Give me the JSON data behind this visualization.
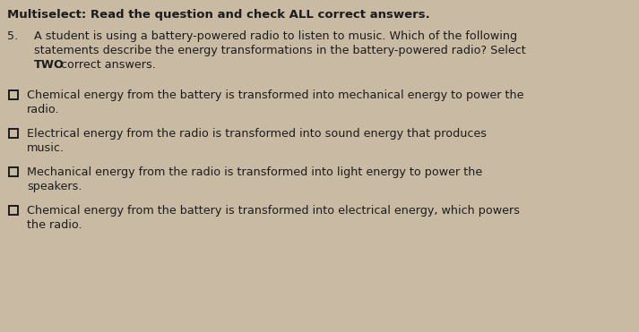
{
  "bg_color": "#c9bba3",
  "title": "Multiselect: Read the question and check ALL correct answers.",
  "q_num": "5.",
  "q_line1": "A student is using a battery-powered radio to listen to music. Which of the following",
  "q_line2": "statements describe the energy transformations in the battery-powered radio? Select",
  "q_bold": "TWO",
  "q_end": " correct answers.",
  "choices": [
    [
      "Chemical energy from the battery is transformed into mechanical energy to power the",
      "radio."
    ],
    [
      "Electrical energy from the radio is transformed into sound energy that produces",
      "music."
    ],
    [
      "Mechanical energy from the radio is transformed into light energy to power the",
      "speakers."
    ],
    [
      "Chemical energy from the battery is transformed into electrical energy, which powers",
      "the radio."
    ]
  ],
  "title_fontsize": 9.5,
  "body_fontsize": 9.2,
  "text_color": "#1c1c1c",
  "checkbox_color": "#1c1c1c",
  "figwidth": 7.13,
  "figheight": 3.71,
  "dpi": 100
}
